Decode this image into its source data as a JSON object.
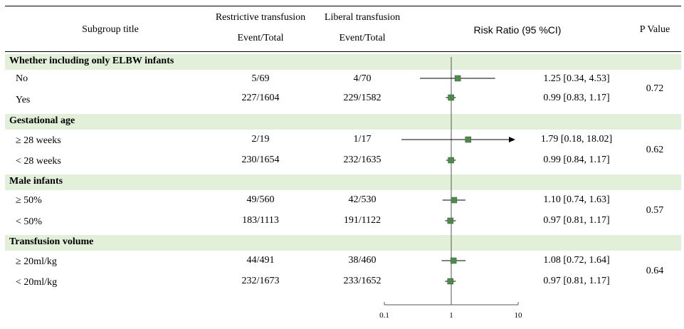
{
  "columns": {
    "subgroup": "Subgroup title",
    "restrictive": "Restrictive transfusion",
    "liberal": "Liberal transfusion",
    "event_total": "Event/Total",
    "risk_ratio": "Risk Ratio (95 %CI)",
    "p_value": "P Value"
  },
  "groups": [
    {
      "title": "Whether including only ELBW infants",
      "p_value": "0.72",
      "rows": [
        {
          "label": "No",
          "restrictive": "5/69",
          "liberal": "4/70",
          "rr_text": "1.25 [0.34, 4.53]"
        },
        {
          "label": "Yes",
          "restrictive": "227/1604",
          "liberal": "229/1582",
          "rr_text": "0.99 [0.83, 1.17]"
        }
      ]
    },
    {
      "title": "Gestational age",
      "p_value": "0.62",
      "rows": [
        {
          "label": "≥ 28 weeks",
          "restrictive": "2/19",
          "liberal": "1/17",
          "rr_text": "1.79 [0.18, 18.02]"
        },
        {
          "label": "< 28 weeks",
          "restrictive": "230/1654",
          "liberal": "232/1635",
          "rr_text": "0.99 [0.84, 1.17]"
        }
      ]
    },
    {
      "title": "Male infants",
      "p_value": "0.57",
      "rows": [
        {
          "label": "≥ 50%",
          "restrictive": "49/560",
          "liberal": "42/530",
          "rr_text": "1.10 [0.74, 1.63]"
        },
        {
          "label": "< 50%",
          "restrictive": "183/1113",
          "liberal": "191/1122",
          "rr_text": "0.97 [0.81, 1.17]"
        }
      ]
    },
    {
      "title": "Transfusion volume",
      "p_value": "0.64",
      "rows": [
        {
          "label": "≥ 20ml/kg",
          "restrictive": "44/491",
          "liberal": "38/460",
          "rr_text": "1.08 [0.72, 1.64]"
        },
        {
          "label": "< 20ml/kg",
          "restrictive": "232/1673",
          "liberal": "233/1652",
          "rr_text": "0.97 [0.81, 1.17]"
        }
      ]
    }
  ],
  "chart_data": {
    "type": "forest",
    "x_scale": "log",
    "x_ticks": [
      "0.1",
      "1",
      "10"
    ],
    "x_range": [
      0.1,
      10
    ],
    "reference_line": 1,
    "marker_color": "#4e8a4a",
    "band_color": "#e2efd9",
    "series": [
      {
        "label": "No",
        "rr": 1.25,
        "lower": 0.34,
        "upper": 4.53
      },
      {
        "label": "Yes",
        "rr": 0.99,
        "lower": 0.83,
        "upper": 1.17
      },
      {
        "label": "≥ 28 weeks",
        "rr": 1.79,
        "lower": 0.18,
        "upper": 18.02
      },
      {
        "label": "< 28 weeks",
        "rr": 0.99,
        "lower": 0.84,
        "upper": 1.17
      },
      {
        "label": "≥ 50%",
        "rr": 1.1,
        "lower": 0.74,
        "upper": 1.63
      },
      {
        "label": "< 50%",
        "rr": 0.97,
        "lower": 0.81,
        "upper": 1.17
      },
      {
        "label": "≥ 20ml/kg",
        "rr": 1.08,
        "lower": 0.72,
        "upper": 1.64
      },
      {
        "label": "< 20ml/kg",
        "rr": 0.97,
        "lower": 0.81,
        "upper": 1.17
      }
    ]
  }
}
